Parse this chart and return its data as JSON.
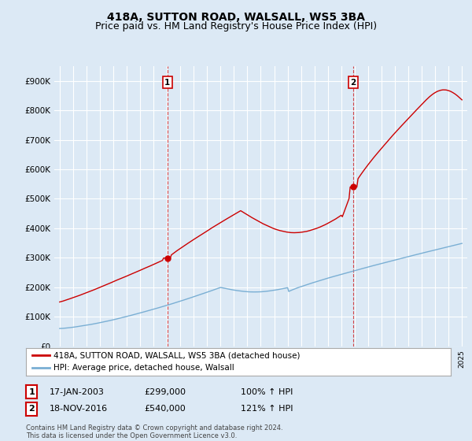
{
  "title": "418A, SUTTON ROAD, WALSALL, WS5 3BA",
  "subtitle": "Price paid vs. HM Land Registry's House Price Index (HPI)",
  "ylim": [
    0,
    950000
  ],
  "yticks": [
    0,
    100000,
    200000,
    300000,
    400000,
    500000,
    600000,
    700000,
    800000,
    900000
  ],
  "ytick_labels": [
    "£0",
    "£100K",
    "£200K",
    "£300K",
    "£400K",
    "£500K",
    "£600K",
    "£700K",
    "£800K",
    "£900K"
  ],
  "background_color": "#dce9f5",
  "grid_color": "#ffffff",
  "red_color": "#cc0000",
  "blue_color": "#7aafd4",
  "sale1_date": 2003.04,
  "sale1_price": 299000,
  "sale2_date": 2016.89,
  "sale2_price": 540000,
  "legend_line1": "418A, SUTTON ROAD, WALSALL, WS5 3BA (detached house)",
  "legend_line2": "HPI: Average price, detached house, Walsall",
  "annotation1_date": "17-JAN-2003",
  "annotation1_price": "£299,000",
  "annotation1_pct": "100% ↑ HPI",
  "annotation2_date": "18-NOV-2016",
  "annotation2_price": "£540,000",
  "annotation2_pct": "121% ↑ HPI",
  "footer": "Contains HM Land Registry data © Crown copyright and database right 2024.\nThis data is licensed under the Open Government Licence v3.0.",
  "title_fontsize": 10,
  "subtitle_fontsize": 9
}
